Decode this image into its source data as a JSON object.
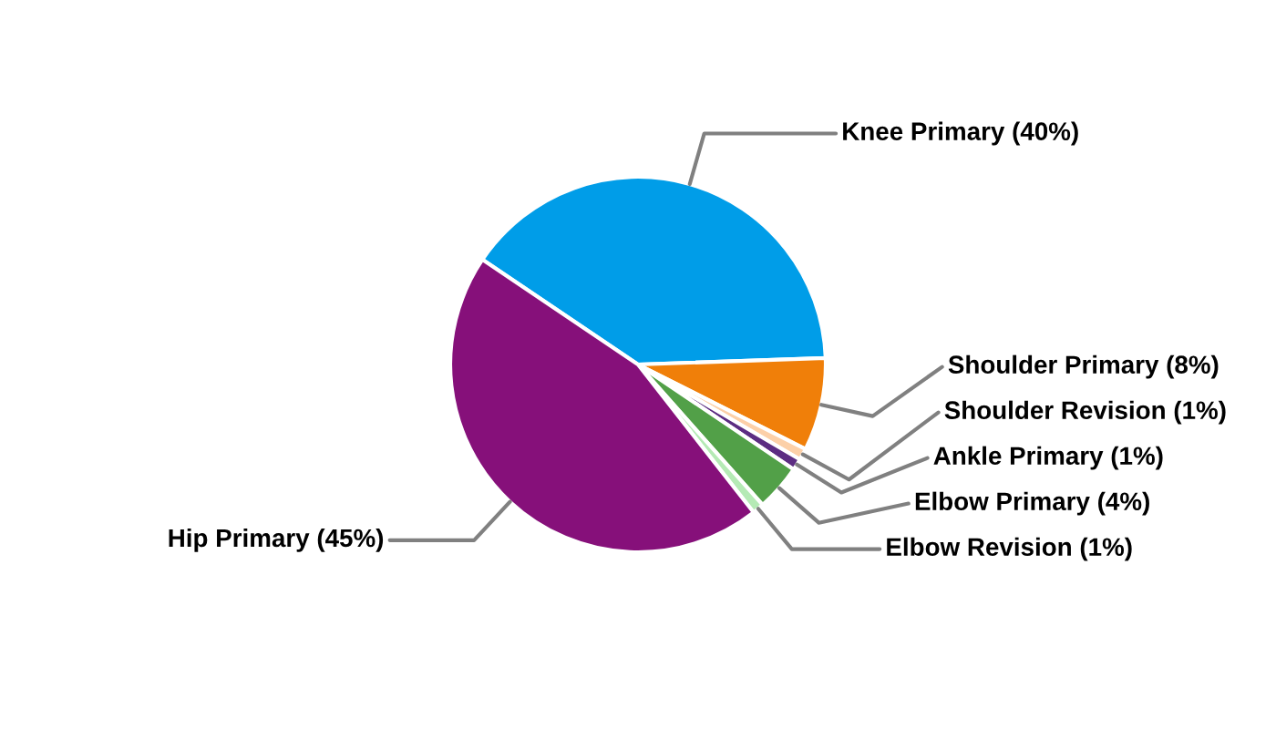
{
  "chart_data": {
    "type": "pie",
    "categories": [
      "Knee Primary",
      "Shoulder Primary",
      "Shoulder Revision",
      "Ankle Primary",
      "Elbow Primary",
      "Elbow Revision",
      "Hip Primary"
    ],
    "values": [
      40,
      8,
      1,
      1,
      4,
      1,
      45
    ],
    "value_labels": [
      "(40%)",
      "(8%)",
      "(1%)",
      "(1%)",
      "(4%)",
      "(1%)",
      "(45%)"
    ],
    "colors": [
      "#009de8",
      "#f07f09",
      "#fcd0a8",
      "#5c2d82",
      "#52a048",
      "#b5eab5",
      "#86107a"
    ]
  }
}
